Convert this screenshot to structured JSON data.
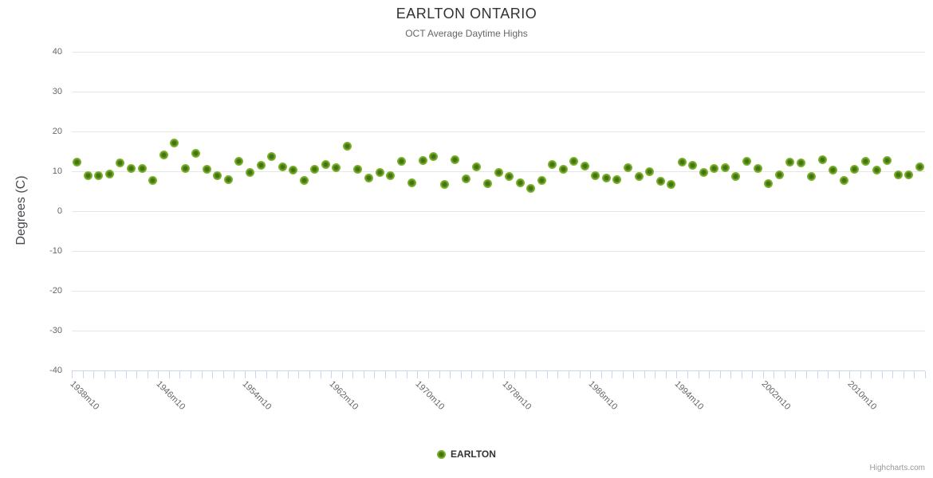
{
  "title": "EARLTON ONTARIO",
  "subtitle": "OCT Average Daytime Highs",
  "legend": {
    "label": "EARLTON"
  },
  "credits": "Highcharts.com",
  "colors": {
    "marker_outer": "#7cb32d",
    "marker_inner": "#3f6c10",
    "grid": "#e6e6e6",
    "axis_line": "#ccd6eb",
    "title_text": "#333333",
    "axis_text": "#666666"
  },
  "chart_data": {
    "type": "scatter",
    "title": "EARLTON ONTARIO",
    "subtitle": "OCT Average Daytime Highs",
    "xlabel": "",
    "ylabel": "Degrees (C)",
    "ylim": [
      -40,
      40
    ],
    "y_ticks": [
      40,
      30,
      20,
      10,
      0,
      -10,
      -20,
      -30,
      -40
    ],
    "grid": true,
    "legend_position": "bottom",
    "x_start_year": 1938,
    "x_suffix": "m10",
    "x_label_every": 8,
    "x_tick_labels": [
      "1938m10",
      "1946m10",
      "1954m10",
      "1962m10",
      "1970m10",
      "1978m10",
      "1986m10",
      "1994m10",
      "2002m10",
      "2010m10"
    ],
    "series": [
      {
        "name": "EARLTON",
        "years": [
          1938,
          1939,
          1940,
          1941,
          1942,
          1943,
          1944,
          1945,
          1946,
          1947,
          1948,
          1949,
          1950,
          1951,
          1952,
          1953,
          1954,
          1955,
          1956,
          1957,
          1958,
          1959,
          1960,
          1961,
          1962,
          1963,
          1964,
          1965,
          1966,
          1967,
          1968,
          1969,
          1970,
          1971,
          1972,
          1973,
          1974,
          1975,
          1976,
          1977,
          1978,
          1979,
          1980,
          1981,
          1982,
          1983,
          1984,
          1985,
          1986,
          1987,
          1988,
          1989,
          1990,
          1991,
          1992,
          1993,
          1994,
          1995,
          1996,
          1997,
          1998,
          1999,
          2000,
          2001,
          2002,
          2003,
          2004,
          2005,
          2006,
          2007,
          2008,
          2009,
          2010,
          2011,
          2012,
          2013,
          2014,
          2015,
          2016
        ],
        "values": [
          12.3,
          8.9,
          8.9,
          9.3,
          12.2,
          10.8,
          10.8,
          7.8,
          14.1,
          17.2,
          10.8,
          14.5,
          10.5,
          9.0,
          7.9,
          12.5,
          9.7,
          11.5,
          13.7,
          11.2,
          10.3,
          7.8,
          10.5,
          11.7,
          10.9,
          16.4,
          10.5,
          8.3,
          9.7,
          9.0,
          12.5,
          7.2,
          12.8,
          13.8,
          6.7,
          13.0,
          8.1,
          11.2,
          7.0,
          9.8,
          8.7,
          7.2,
          5.7,
          7.8,
          11.7,
          10.5,
          12.5,
          11.3,
          9.0,
          8.3,
          7.9,
          10.9,
          8.8,
          9.9,
          7.5,
          6.8,
          12.3,
          11.5,
          9.8,
          10.8,
          10.9,
          8.8,
          12.6,
          10.8,
          7.0,
          9.2,
          12.3,
          12.2,
          8.7,
          12.9,
          10.4,
          7.7,
          10.5,
          12.6,
          10.3,
          12.7,
          9.2,
          9.2,
          11.1
        ]
      }
    ]
  }
}
